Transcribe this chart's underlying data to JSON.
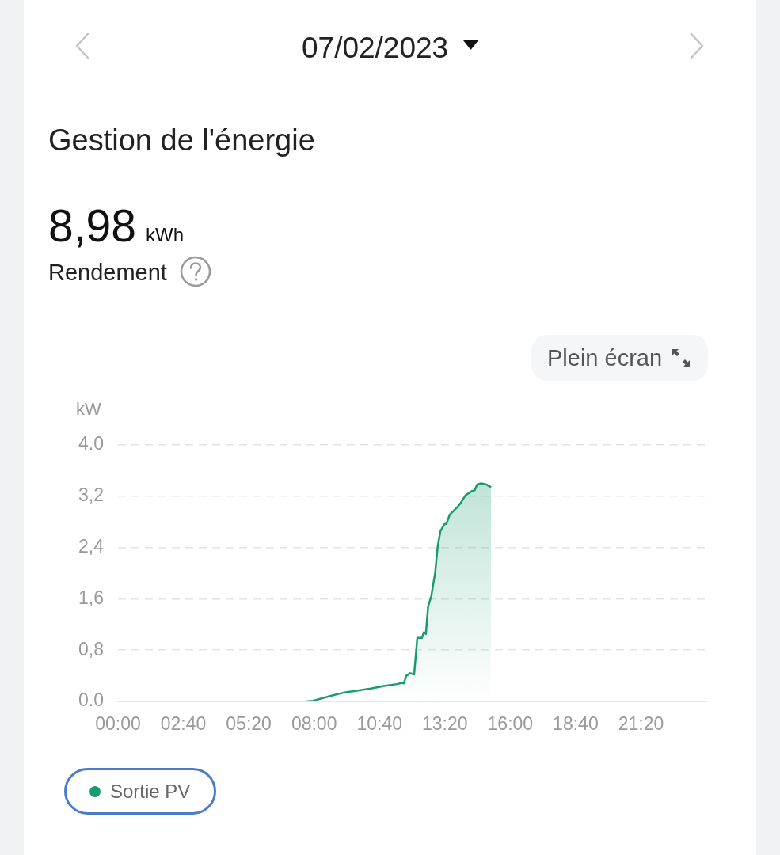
{
  "chart_data": {
    "type": "area",
    "title": "Gestion de l'énergie",
    "subtitle": "07/02/2023",
    "ylabel": "kW",
    "annotations": [
      "8,98",
      "kWh",
      "Rendement",
      "Plein écran"
    ],
    "x": [
      7.66,
      7.96,
      8.71,
      9.24,
      9.78,
      10.31,
      10.85,
      11.38,
      11.6,
      11.66,
      11.76,
      11.92,
      12.08,
      12.21,
      12.4,
      12.48,
      12.56,
      12.65,
      12.78,
      12.94,
      13.04,
      13.15,
      13.31,
      13.4,
      13.53,
      13.85,
      14.01,
      14.17,
      14.44,
      14.55,
      14.65,
      14.81,
      15.03,
      15.22
    ],
    "series": [
      {
        "name": "Sortie PV",
        "color": "#1a9a70",
        "values": [
          0,
          0.01,
          0.09,
          0.14,
          0.17,
          0.2,
          0.24,
          0.27,
          0.29,
          0.28,
          0.4,
          0.44,
          0.42,
          0.99,
          0.99,
          1.08,
          1.05,
          1.48,
          1.64,
          2.01,
          2.41,
          2.65,
          2.76,
          2.77,
          2.91,
          3.03,
          3.11,
          3.21,
          3.28,
          3.29,
          3.38,
          3.4,
          3.38,
          3.34
        ]
      }
    ],
    "xlim": [
      0,
      24
    ],
    "ylim": [
      0,
      4
    ],
    "xticks": [
      {
        "value": 0,
        "label": "00:00"
      },
      {
        "value": 2.667,
        "label": "02:40"
      },
      {
        "value": 5.333,
        "label": "05:20"
      },
      {
        "value": 8,
        "label": "08:00"
      },
      {
        "value": 10.667,
        "label": "10:40"
      },
      {
        "value": 13.333,
        "label": "13:20"
      },
      {
        "value": 16,
        "label": "16:00"
      },
      {
        "value": 18.667,
        "label": "18:40"
      },
      {
        "value": 21.333,
        "label": "21:20"
      }
    ],
    "yticks": [
      {
        "value": 0,
        "label": "0.0"
      },
      {
        "value": 0.8,
        "label": "0,8"
      },
      {
        "value": 1.6,
        "label": "1,6"
      },
      {
        "value": 2.4,
        "label": "2,4"
      },
      {
        "value": 3.2,
        "label": "3,2"
      },
      {
        "value": 4,
        "label": "4.0"
      }
    ],
    "grid": "y",
    "legend": "bottom left"
  }
}
